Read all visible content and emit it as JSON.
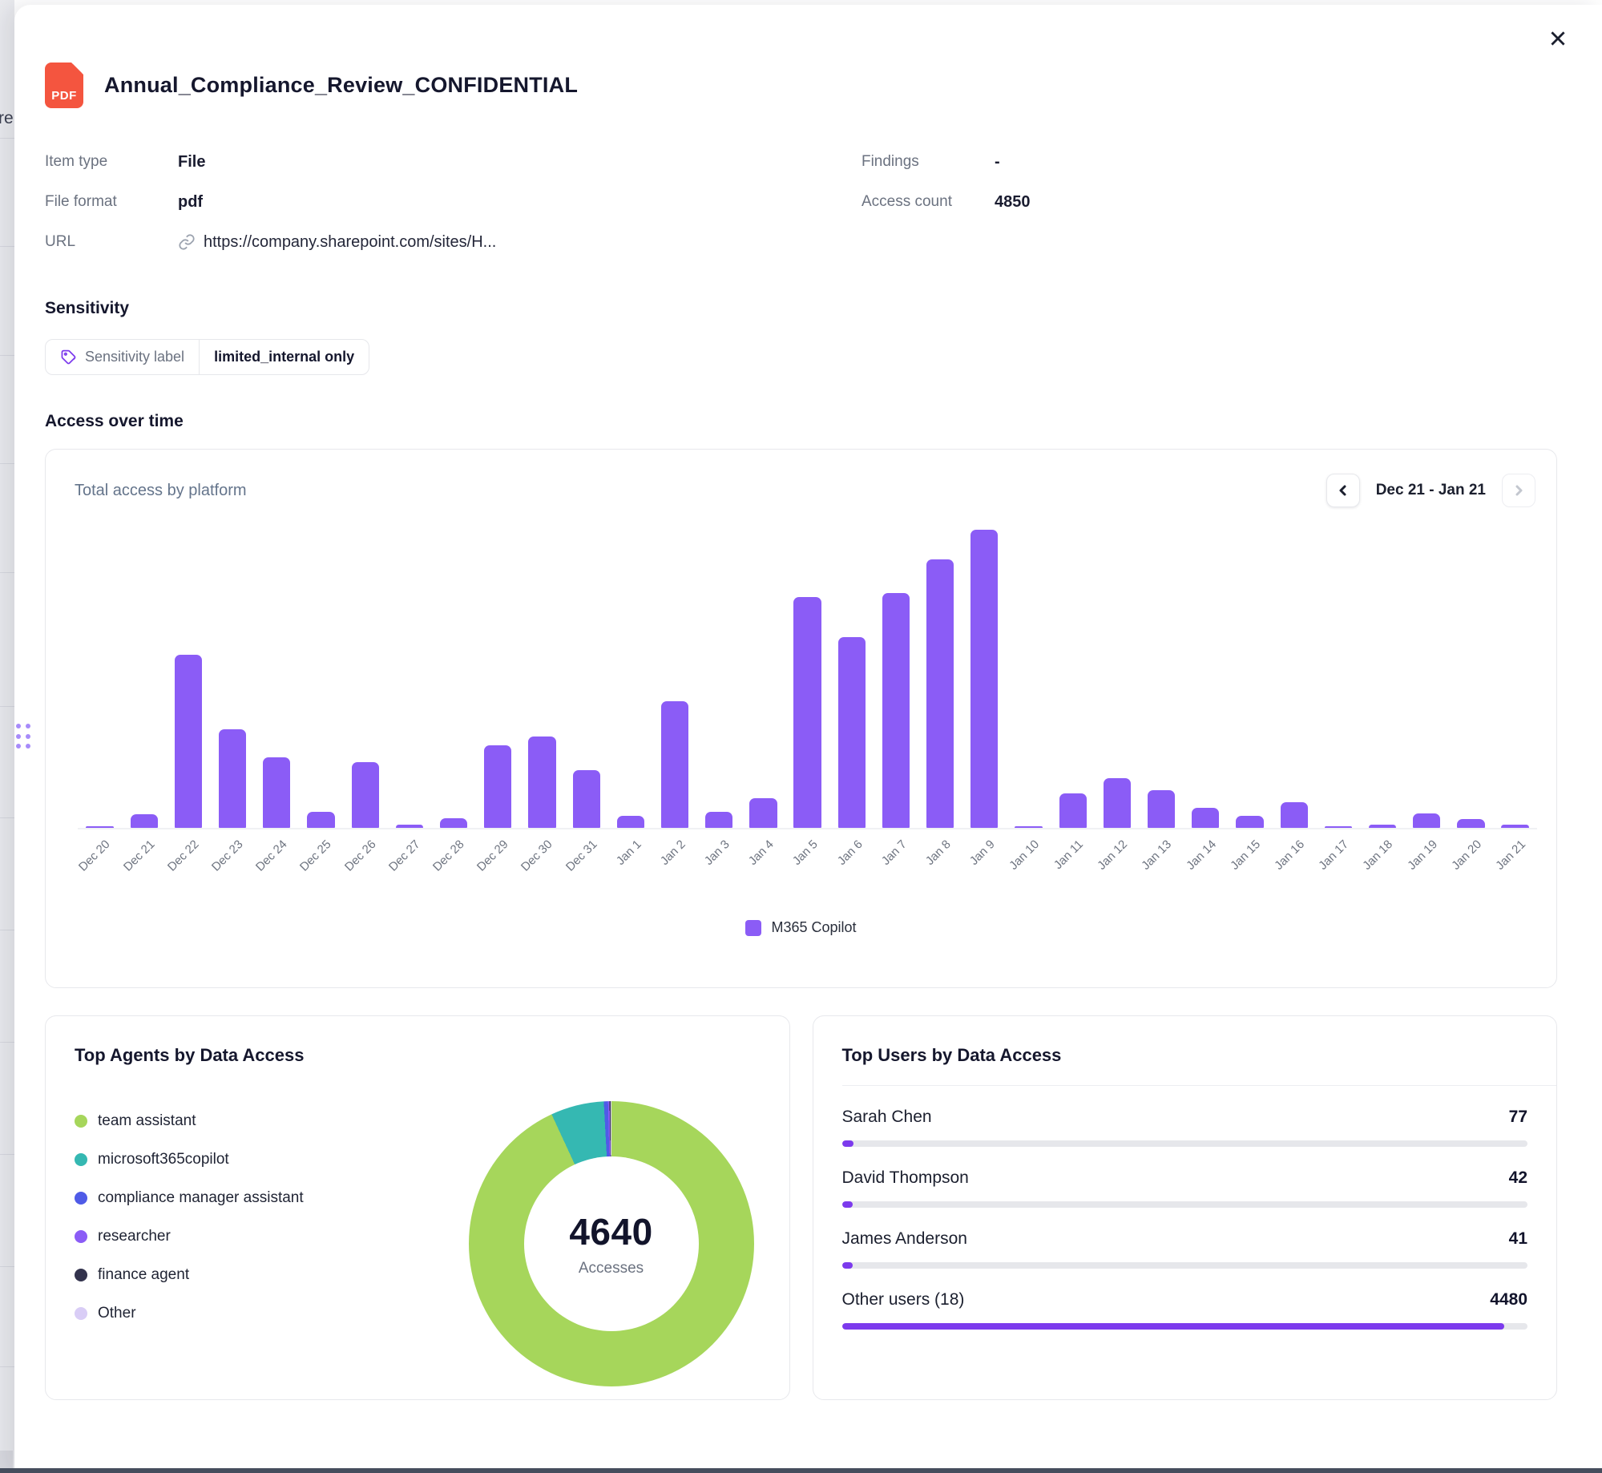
{
  "file": {
    "badge": "PDF",
    "title": "Annual_Compliance_Review_CONFIDENTIAL"
  },
  "metadata": {
    "item_type_label": "Item type",
    "item_type_value": "File",
    "file_format_label": "File format",
    "file_format_value": "pdf",
    "url_label": "URL",
    "url_value": "https://company.sharepoint.com/sites/H...",
    "findings_label": "Findings",
    "findings_value": "-",
    "access_count_label": "Access count",
    "access_count_value": "4850"
  },
  "sensitivity": {
    "heading": "Sensitivity",
    "chip_label": "Sensitivity label",
    "chip_value": "limited_internal only"
  },
  "access_over_time": {
    "heading": "Access over time",
    "card_title": "Total access by platform",
    "date_range": "Dec 21 - Jan 21",
    "legend_label": "M365 Copilot"
  },
  "top_agents": {
    "title": "Top Agents by Data Access",
    "total": "4640",
    "total_label": "Accesses"
  },
  "top_users": {
    "title": "Top Users by Data Access"
  },
  "background": {
    "text_fragment": "re"
  },
  "colors": {
    "bar_purple": "#8b5cf6",
    "progress_purple": "#7c3aed",
    "donut_green": "#a6d65b",
    "donut_teal": "#35b8b2",
    "donut_blue": "#4f5be7",
    "donut_purple": "#8b5cf6",
    "donut_dark": "#33334d",
    "donut_lavender": "#d9cdf6",
    "pdf_red": "#f4553f"
  },
  "chart_data": [
    {
      "type": "bar",
      "title": "Total access by platform",
      "categories": [
        "Dec 20",
        "Dec 21",
        "Dec 22",
        "Dec 23",
        "Dec 24",
        "Dec 25",
        "Dec 26",
        "Dec 27",
        "Dec 28",
        "Dec 29",
        "Dec 30",
        "Dec 31",
        "Jan 1",
        "Jan 2",
        "Jan 3",
        "Jan 4",
        "Jan 5",
        "Jan 6",
        "Jan 7",
        "Jan 8",
        "Jan 9",
        "Jan 10",
        "Jan 11",
        "Jan 12",
        "Jan 13",
        "Jan 14",
        "Jan 15",
        "Jan 16",
        "Jan 17",
        "Jan 18",
        "Jan 19",
        "Jan 20",
        "Jan 21"
      ],
      "series": [
        {
          "name": "M365 Copilot",
          "color": "#8b5cf6",
          "values": [
            3,
            28,
            365,
            208,
            148,
            34,
            139,
            6,
            20,
            174,
            192,
            122,
            25,
            266,
            33,
            63,
            487,
            401,
            494,
            566,
            628,
            4,
            72,
            104,
            80,
            43,
            26,
            54,
            4,
            7,
            30,
            19,
            7
          ]
        }
      ],
      "ylim": [
        0,
        650
      ],
      "grid": false,
      "legend_position": "bottom",
      "note": "values estimated from bar heights; no y-axis labels shown"
    },
    {
      "type": "pie",
      "donut": true,
      "title": "Top Agents by Data Access",
      "center_value": "4640",
      "center_label": "Accesses",
      "legend_position": "left",
      "segments": [
        {
          "label": "team assistant",
          "value": 4320,
          "color": "#a6d65b"
        },
        {
          "label": "microsoft365copilot",
          "value": 280,
          "color": "#35b8b2"
        },
        {
          "label": "compliance manager assistant",
          "value": 22,
          "color": "#4f5be7"
        },
        {
          "label": "researcher",
          "value": 8,
          "color": "#8b5cf6"
        },
        {
          "label": "finance agent",
          "value": 5,
          "color": "#33334d"
        },
        {
          "label": "Other",
          "value": 5,
          "color": "#d9cdf6"
        }
      ],
      "note": "segment values estimated from arc angles; total 4640 shown in center"
    },
    {
      "type": "bar",
      "orientation": "horizontal",
      "title": "Top Users by Data Access",
      "max": 4640,
      "rows": [
        {
          "label": "Sarah Chen",
          "value": 77
        },
        {
          "label": "David Thompson",
          "value": 42
        },
        {
          "label": "James Anderson",
          "value": 41
        },
        {
          "label": "Other users (18)",
          "value": 4480
        }
      ]
    }
  ]
}
